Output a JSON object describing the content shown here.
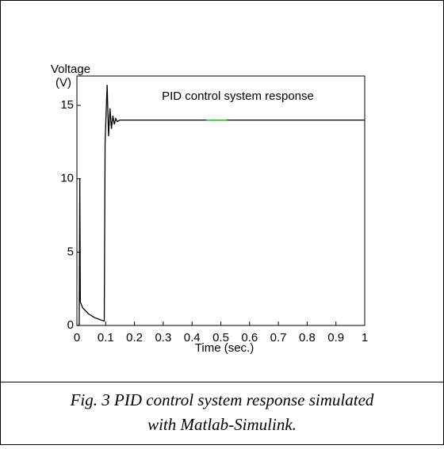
{
  "chart_data": {
    "type": "line",
    "title": "PID control system response",
    "xlabel": "Time (sec.)",
    "ylabel": [
      "Voltage",
      "(V)"
    ],
    "caption": [
      "Fig. 3 PID control system response simulated",
      "with Matlab-Simulink."
    ],
    "xlim": [
      0,
      1
    ],
    "ylim": [
      0,
      17
    ],
    "xticks": [
      0,
      0.1,
      0.2,
      0.3,
      0.4,
      0.5,
      0.6,
      0.7,
      0.8,
      0.9,
      1
    ],
    "yticks": [
      0,
      5,
      10,
      15
    ],
    "series": [
      {
        "color": "#000000",
        "x": [
          0,
          0.008,
          0.01,
          0.012,
          0.02,
          0.04,
          0.06,
          0.08,
          0.095,
          0.098,
          0.105,
          0.11,
          0.115,
          0.12,
          0.125,
          0.13,
          0.135,
          0.14,
          0.15,
          0.2,
          0.4,
          0.6,
          0.8,
          1
        ],
        "values": [
          0,
          0,
          10,
          1.6,
          1.2,
          0.8,
          0.55,
          0.4,
          0.3,
          12.5,
          16.4,
          12.9,
          14.8,
          13.4,
          14.3,
          13.7,
          14.1,
          13.9,
          14.0,
          14.0,
          14.0,
          14.0,
          14.0,
          14.0
        ]
      },
      {
        "color": "#00cc00",
        "x": [
          0.45,
          0.52
        ],
        "values": [
          14.0,
          14.0
        ]
      }
    ]
  }
}
